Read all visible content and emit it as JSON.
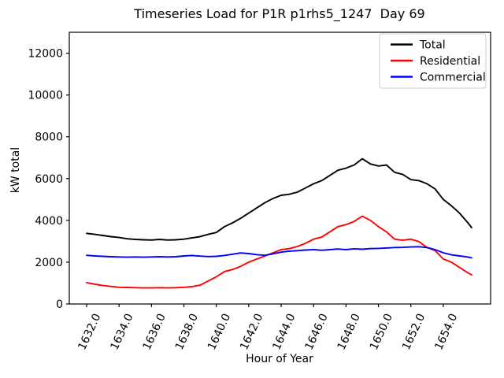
{
  "chart_data": {
    "type": "line",
    "title": "Timeseries Load for P1R p1rhs5_1247  Day 69",
    "xlabel": "Hour of Year",
    "ylabel": "kW total",
    "xlim": [
      1630.93,
      1656.92
    ],
    "ylim": [
      0,
      13000
    ],
    "xticks": [
      1632,
      1634,
      1636,
      1638,
      1640,
      1642,
      1644,
      1646,
      1648,
      1650,
      1652,
      1654
    ],
    "xtick_labels": [
      "1632.0",
      "1634.0",
      "1636.0",
      "1638.0",
      "1640.0",
      "1642.0",
      "1644.0",
      "1646.0",
      "1648.0",
      "1650.0",
      "1652.0",
      "1654.0"
    ],
    "yticks": [
      0,
      2000,
      4000,
      6000,
      8000,
      10000,
      12000
    ],
    "ytick_labels": [
      "0",
      "2000",
      "4000",
      "6000",
      "8000",
      "10000",
      "12000"
    ],
    "grid": false,
    "legend_position": "upper right",
    "x": [
      1632.0,
      1632.5,
      1633.0,
      1633.5,
      1634.0,
      1634.5,
      1635.0,
      1635.5,
      1636.0,
      1636.5,
      1637.0,
      1637.5,
      1638.0,
      1638.5,
      1639.0,
      1639.5,
      1640.0,
      1640.5,
      1641.0,
      1641.5,
      1642.0,
      1642.5,
      1643.0,
      1643.5,
      1644.0,
      1644.5,
      1645.0,
      1645.5,
      1646.0,
      1646.5,
      1647.0,
      1647.5,
      1648.0,
      1648.5,
      1649.0,
      1649.5,
      1650.0,
      1650.5,
      1651.0,
      1651.5,
      1652.0,
      1652.5,
      1653.0,
      1653.5,
      1654.0,
      1654.5,
      1655.0,
      1655.5,
      1655.75
    ],
    "series": [
      {
        "name": "Total",
        "color": "#000000",
        "values": [
          3380,
          3330,
          3280,
          3220,
          3180,
          3120,
          3090,
          3070,
          3060,
          3090,
          3060,
          3070,
          3100,
          3160,
          3220,
          3330,
          3420,
          3700,
          3880,
          4100,
          4350,
          4600,
          4850,
          5050,
          5200,
          5250,
          5350,
          5550,
          5750,
          5900,
          6150,
          6400,
          6500,
          6650,
          6950,
          6700,
          6600,
          6650,
          6300,
          6200,
          5950,
          5900,
          5750,
          5500,
          5000,
          4700,
          4350,
          3900,
          3650
        ]
      },
      {
        "name": "Residential",
        "color": "#ff0000",
        "values": [
          1020,
          950,
          880,
          840,
          800,
          790,
          780,
          770,
          770,
          780,
          770,
          780,
          800,
          830,
          900,
          1100,
          1300,
          1550,
          1650,
          1800,
          2000,
          2150,
          2300,
          2450,
          2600,
          2650,
          2750,
          2900,
          3100,
          3200,
          3450,
          3700,
          3800,
          3950,
          4200,
          4000,
          3700,
          3450,
          3100,
          3050,
          3100,
          2980,
          2700,
          2550,
          2150,
          2000,
          1750,
          1500,
          1390
        ]
      },
      {
        "name": "Commercial",
        "color": "#0000ff",
        "values": [
          2330,
          2300,
          2280,
          2260,
          2250,
          2240,
          2250,
          2240,
          2250,
          2260,
          2250,
          2260,
          2300,
          2320,
          2290,
          2270,
          2280,
          2320,
          2380,
          2440,
          2410,
          2360,
          2330,
          2400,
          2480,
          2530,
          2550,
          2580,
          2600,
          2570,
          2600,
          2630,
          2600,
          2640,
          2620,
          2650,
          2660,
          2680,
          2700,
          2710,
          2730,
          2740,
          2700,
          2600,
          2450,
          2350,
          2300,
          2250,
          2210
        ]
      }
    ]
  }
}
